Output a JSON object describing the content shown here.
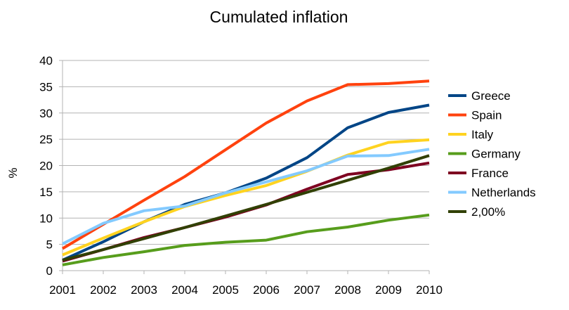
{
  "chart_data": {
    "type": "line",
    "title": "Cumulated inflation",
    "xlabel": "",
    "ylabel": "%",
    "x": [
      "2001",
      "2002",
      "2003",
      "2004",
      "2005",
      "2006",
      "2007",
      "2008",
      "2009",
      "2010"
    ],
    "ylim": [
      0,
      40
    ],
    "yticks": [
      0,
      5,
      10,
      15,
      20,
      25,
      30,
      35,
      40
    ],
    "grid": "horizontal",
    "legend_position": "right",
    "series": [
      {
        "name": "Greece",
        "color": "#004586",
        "values": [
          2.0,
          5.5,
          9.3,
          12.6,
          14.8,
          17.6,
          21.5,
          27.2,
          30.1,
          31.5
        ]
      },
      {
        "name": "Spain",
        "color": "#ff420e",
        "values": [
          4.2,
          8.8,
          13.4,
          17.9,
          23.0,
          28.1,
          32.3,
          35.4,
          35.6,
          36.1
        ]
      },
      {
        "name": "Italy",
        "color": "#ffd320",
        "values": [
          3.0,
          6.2,
          9.3,
          12.2,
          14.3,
          16.2,
          18.9,
          22.0,
          24.4,
          24.9
        ]
      },
      {
        "name": "Germany",
        "color": "#579d1c",
        "values": [
          1.1,
          2.5,
          3.6,
          4.8,
          5.4,
          5.8,
          7.4,
          8.3,
          9.6,
          10.6
        ]
      },
      {
        "name": "France",
        "color": "#7e0021",
        "values": [
          1.8,
          4.0,
          6.3,
          8.2,
          10.2,
          12.5,
          15.5,
          18.3,
          19.2,
          20.5
        ]
      },
      {
        "name": "Netherlands",
        "color": "#83caff",
        "values": [
          5.1,
          9.0,
          11.4,
          12.3,
          14.8,
          16.9,
          19.0,
          21.8,
          21.9,
          23.1
        ]
      },
      {
        "name": "2,00%",
        "color": "#314004",
        "values": [
          2.0,
          4.0,
          6.1,
          8.2,
          10.4,
          12.6,
          14.9,
          17.2,
          19.5,
          21.9
        ]
      }
    ]
  }
}
